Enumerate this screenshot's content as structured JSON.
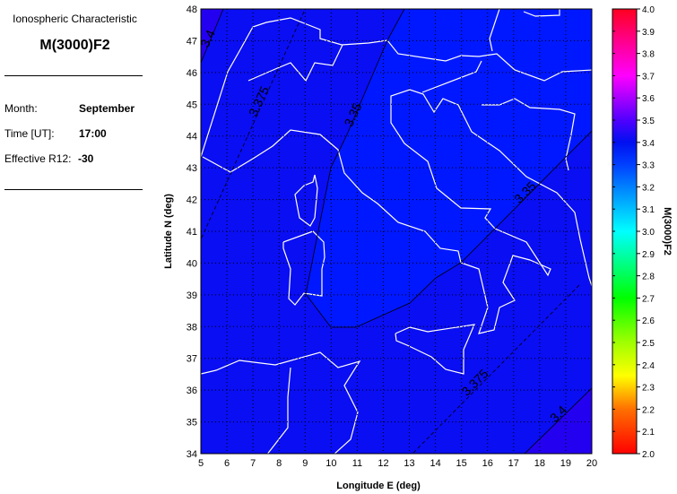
{
  "panel": {
    "heading": "Ionospheric Characteristic",
    "characteristic": "M(3000)F2",
    "month_label": "Month:",
    "month_value": "September",
    "time_label": "Time [UT]:",
    "time_value": "17:00",
    "r12_label": "Effective R12:",
    "r12_value": "-30"
  },
  "chart_data": {
    "type": "heatmap",
    "title": "",
    "xlabel": "Longitude E (deg)",
    "ylabel": "Latitude N (deg)",
    "xlim": [
      5,
      20
    ],
    "ylim": [
      34,
      48
    ],
    "xticks": [
      5,
      6,
      7,
      8,
      9,
      10,
      11,
      12,
      13,
      14,
      15,
      16,
      17,
      18,
      19,
      20
    ],
    "yticks": [
      34,
      35,
      36,
      37,
      38,
      39,
      40,
      41,
      42,
      43,
      44,
      45,
      46,
      47,
      48
    ],
    "grid": true,
    "contours": [
      {
        "level": 3.4,
        "label": "3.4"
      },
      {
        "level": 3.375,
        "label": "3.375"
      },
      {
        "level": 3.35,
        "label": "3.35"
      },
      {
        "level": 3.35,
        "label": "3.35"
      },
      {
        "level": 3.375,
        "label": "3.375"
      },
      {
        "level": 3.4,
        "label": "3.4"
      }
    ],
    "colorbar": {
      "label": "M(3000)F2",
      "range": [
        2.0,
        4.0
      ],
      "ticks": [
        "2.0",
        "2.1",
        "2.2",
        "2.3",
        "2.4",
        "2.5",
        "2.6",
        "2.7",
        "2.8",
        "2.9",
        "3.0",
        "3.1",
        "3.2",
        "3.3",
        "3.4",
        "3.5",
        "3.6",
        "3.7",
        "3.8",
        "3.9",
        "4.0"
      ],
      "stops": [
        {
          "value": 2.0,
          "color": "#ff0000"
        },
        {
          "value": 2.2,
          "color": "#ff7000"
        },
        {
          "value": 2.35,
          "color": "#ffff00"
        },
        {
          "value": 2.5,
          "color": "#a0ff00"
        },
        {
          "value": 2.7,
          "color": "#00ff00"
        },
        {
          "value": 2.85,
          "color": "#00ff80"
        },
        {
          "value": 3.0,
          "color": "#00ffff"
        },
        {
          "value": 3.15,
          "color": "#00a0ff"
        },
        {
          "value": 3.3,
          "color": "#0040ff"
        },
        {
          "value": 3.4,
          "color": "#0010f0"
        },
        {
          "value": 3.5,
          "color": "#5000ff"
        },
        {
          "value": 3.7,
          "color": "#ff00ff"
        },
        {
          "value": 3.85,
          "color": "#ff0090"
        },
        {
          "value": 4.0,
          "color": "#ff0020"
        }
      ]
    },
    "fill_colors": {
      "below_3.35": "#0018ff",
      "3.35_to_3.4": "#0a0ef2",
      "above_3.4": "#2400f0"
    },
    "coastline_color": "#ffffff"
  }
}
